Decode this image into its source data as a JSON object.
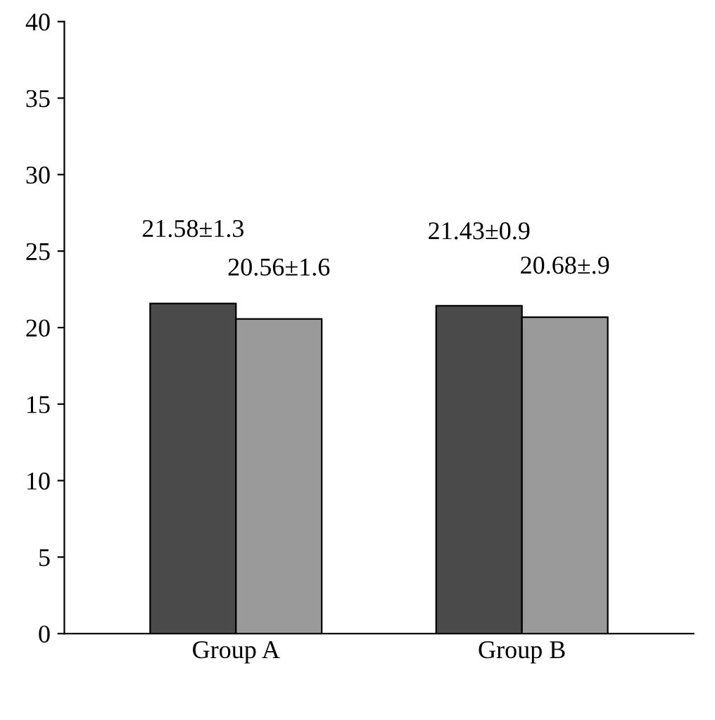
{
  "chart_data": {
    "type": "bar",
    "categories": [
      "Group A",
      "Group B"
    ],
    "series": [
      {
        "color": "#4a4a4a",
        "values": [
          21.58,
          21.43
        ],
        "value_labels": [
          "21.58±1.3",
          "21.43±0.9"
        ]
      },
      {
        "color": "#9a9a9a",
        "values": [
          20.56,
          20.68
        ],
        "value_labels": [
          "20.56±1.6",
          "20.68±.9"
        ]
      }
    ],
    "ylim": [
      0,
      40
    ],
    "yticks": [
      0,
      5,
      10,
      15,
      20,
      25,
      30,
      35,
      40
    ],
    "grid": false
  }
}
